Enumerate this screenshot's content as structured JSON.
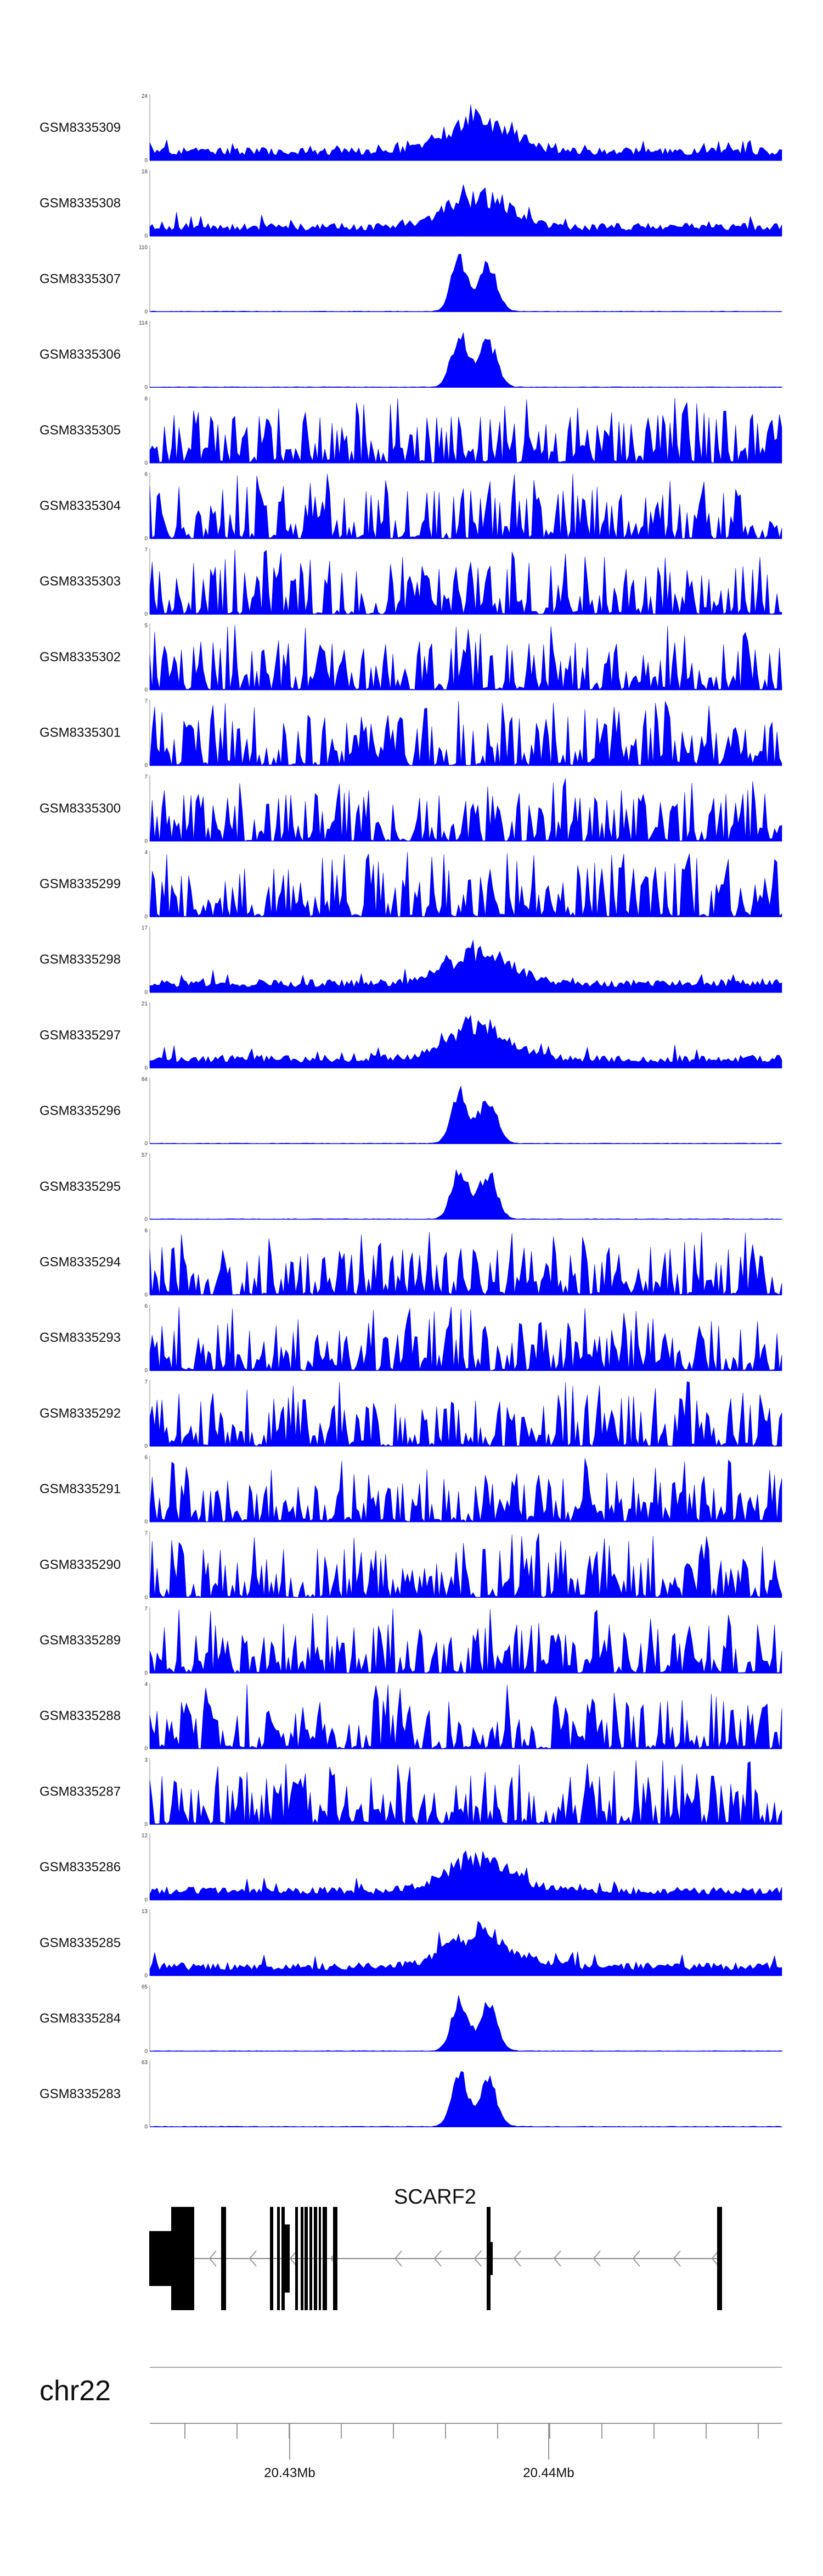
{
  "chart_data": {
    "type": "area",
    "fill_color": "#0000ff",
    "tracks": [
      {
        "name": "GSM8335309",
        "ymax": "24",
        "peak_profile": "broad"
      },
      {
        "name": "GSM8335308",
        "ymax": "18",
        "peak_profile": "broad"
      },
      {
        "name": "GSM8335307",
        "ymax": "110",
        "peak_profile": "sharp"
      },
      {
        "name": "GSM8335306",
        "ymax": "114",
        "peak_profile": "sharp"
      },
      {
        "name": "GSM8335305",
        "ymax": "6",
        "peak_profile": "noise"
      },
      {
        "name": "GSM8335304",
        "ymax": "6",
        "peak_profile": "noise"
      },
      {
        "name": "GSM8335303",
        "ymax": "7",
        "peak_profile": "noise"
      },
      {
        "name": "GSM8335302",
        "ymax": "5",
        "peak_profile": "noise"
      },
      {
        "name": "GSM8335301",
        "ymax": "7",
        "peak_profile": "noise"
      },
      {
        "name": "GSM8335300",
        "ymax": "7",
        "peak_profile": "noise"
      },
      {
        "name": "GSM8335299",
        "ymax": "4",
        "peak_profile": "noise"
      },
      {
        "name": "GSM8335298",
        "ymax": "17",
        "peak_profile": "broad"
      },
      {
        "name": "GSM8335297",
        "ymax": "21",
        "peak_profile": "broad"
      },
      {
        "name": "GSM8335296",
        "ymax": "84",
        "peak_profile": "sharp"
      },
      {
        "name": "GSM8335295",
        "ymax": "57",
        "peak_profile": "sharp"
      },
      {
        "name": "GSM8335294",
        "ymax": "6",
        "peak_profile": "noise"
      },
      {
        "name": "GSM8335293",
        "ymax": "6",
        "peak_profile": "noise"
      },
      {
        "name": "GSM8335292",
        "ymax": "7",
        "peak_profile": "noise"
      },
      {
        "name": "GSM8335291",
        "ymax": "6",
        "peak_profile": "noise"
      },
      {
        "name": "GSM8335290",
        "ymax": "7",
        "peak_profile": "noise"
      },
      {
        "name": "GSM8335289",
        "ymax": "7",
        "peak_profile": "noise"
      },
      {
        "name": "GSM8335288",
        "ymax": "4",
        "peak_profile": "noise"
      },
      {
        "name": "GSM8335287",
        "ymax": "3",
        "peak_profile": "noise"
      },
      {
        "name": "GSM8335286",
        "ymax": "12",
        "peak_profile": "broad"
      },
      {
        "name": "GSM8335285",
        "ymax": "13",
        "peak_profile": "broad"
      },
      {
        "name": "GSM8335284",
        "ymax": "65",
        "peak_profile": "sharp"
      },
      {
        "name": "GSM8335283",
        "ymax": "63",
        "peak_profile": "sharp"
      }
    ],
    "ymin_label": "0",
    "gene": {
      "name": "SCARF2",
      "strand": "-"
    },
    "chromosome": "chr22",
    "axis_ticks": [
      {
        "value": 20430000,
        "label": "20.43Mb"
      },
      {
        "value": 20440000,
        "label": "20.44Mb"
      }
    ]
  }
}
